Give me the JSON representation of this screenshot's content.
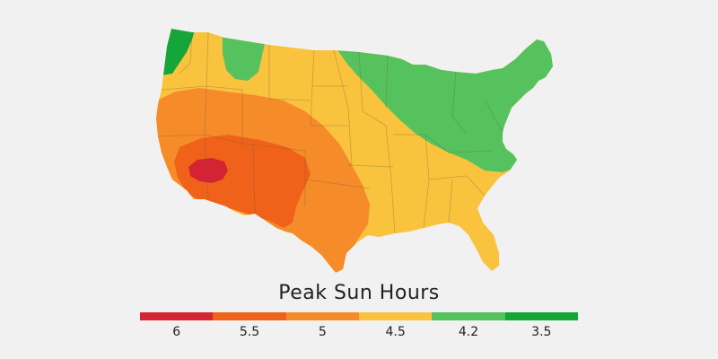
{
  "legend": {
    "title": "Peak Sun Hours",
    "items": [
      {
        "label": "6",
        "color": "#d42433"
      },
      {
        "label": "5.5",
        "color": "#f0621a"
      },
      {
        "label": "5",
        "color": "#f68b2a"
      },
      {
        "label": "4.5",
        "color": "#f9c33d"
      },
      {
        "label": "4.2",
        "color": "#56c25d"
      },
      {
        "label": "3.5",
        "color": "#15a63a"
      }
    ]
  },
  "map": {
    "subject": "contiguous-united-states",
    "zones": [
      {
        "value": "3.5",
        "region": "pacific-northwest-coast"
      },
      {
        "value": "4.2",
        "region": "great-lakes-northeast"
      },
      {
        "value": "4.2",
        "region": "northern-minnesota"
      },
      {
        "value": "4.5",
        "region": "northern-plains-midwest-southeast"
      },
      {
        "value": "5",
        "region": "intermountain-west-texas"
      },
      {
        "value": "5.5",
        "region": "southwest"
      },
      {
        "value": "6",
        "region": "southern-california-desert"
      }
    ]
  }
}
